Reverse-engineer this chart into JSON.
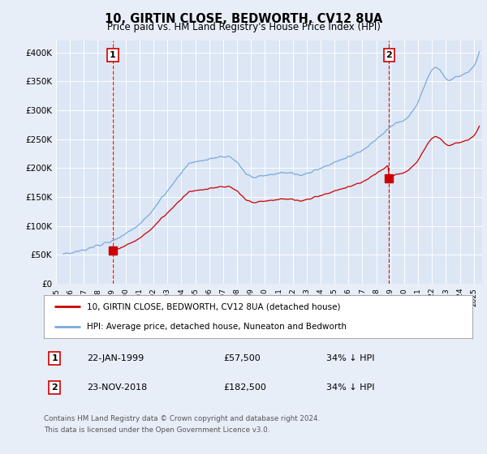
{
  "title": "10, GIRTIN CLOSE, BEDWORTH, CV12 8UA",
  "subtitle": "Price paid vs. HM Land Registry's House Price Index (HPI)",
  "background_color": "#e8eef8",
  "plot_bg_color": "#dce6f5",
  "grid_color": "#ffffff",
  "sale1_year": 1999.08,
  "sale1_price": 57500,
  "sale2_year": 2018.92,
  "sale2_price": 182500,
  "legend_line1": "10, GIRTIN CLOSE, BEDWORTH, CV12 8UA (detached house)",
  "legend_line2": "HPI: Average price, detached house, Nuneaton and Bedworth",
  "annotation1_text": "22-JAN-1999",
  "annotation1_price": "£57,500",
  "annotation1_hpi": "34% ↓ HPI",
  "annotation2_text": "23-NOV-2018",
  "annotation2_price": "£182,500",
  "annotation2_hpi": "34% ↓ HPI",
  "footer": "Contains HM Land Registry data © Crown copyright and database right 2024.\nThis data is licensed under the Open Government Licence v3.0.",
  "hpi_color": "#7aabdb",
  "price_color": "#cc0000",
  "vline_color": "#cc0000",
  "annotation_box_color": "#cc0000",
  "ylim": [
    0,
    420000
  ],
  "yticks": [
    0,
    50000,
    100000,
    150000,
    200000,
    250000,
    300000,
    350000,
    400000
  ],
  "ytick_labels": [
    "£0",
    "£50K",
    "£100K",
    "£150K",
    "£200K",
    "£250K",
    "£300K",
    "£350K",
    "£400K"
  ],
  "xlim_left": 1995.4,
  "xlim_right": 2025.6
}
